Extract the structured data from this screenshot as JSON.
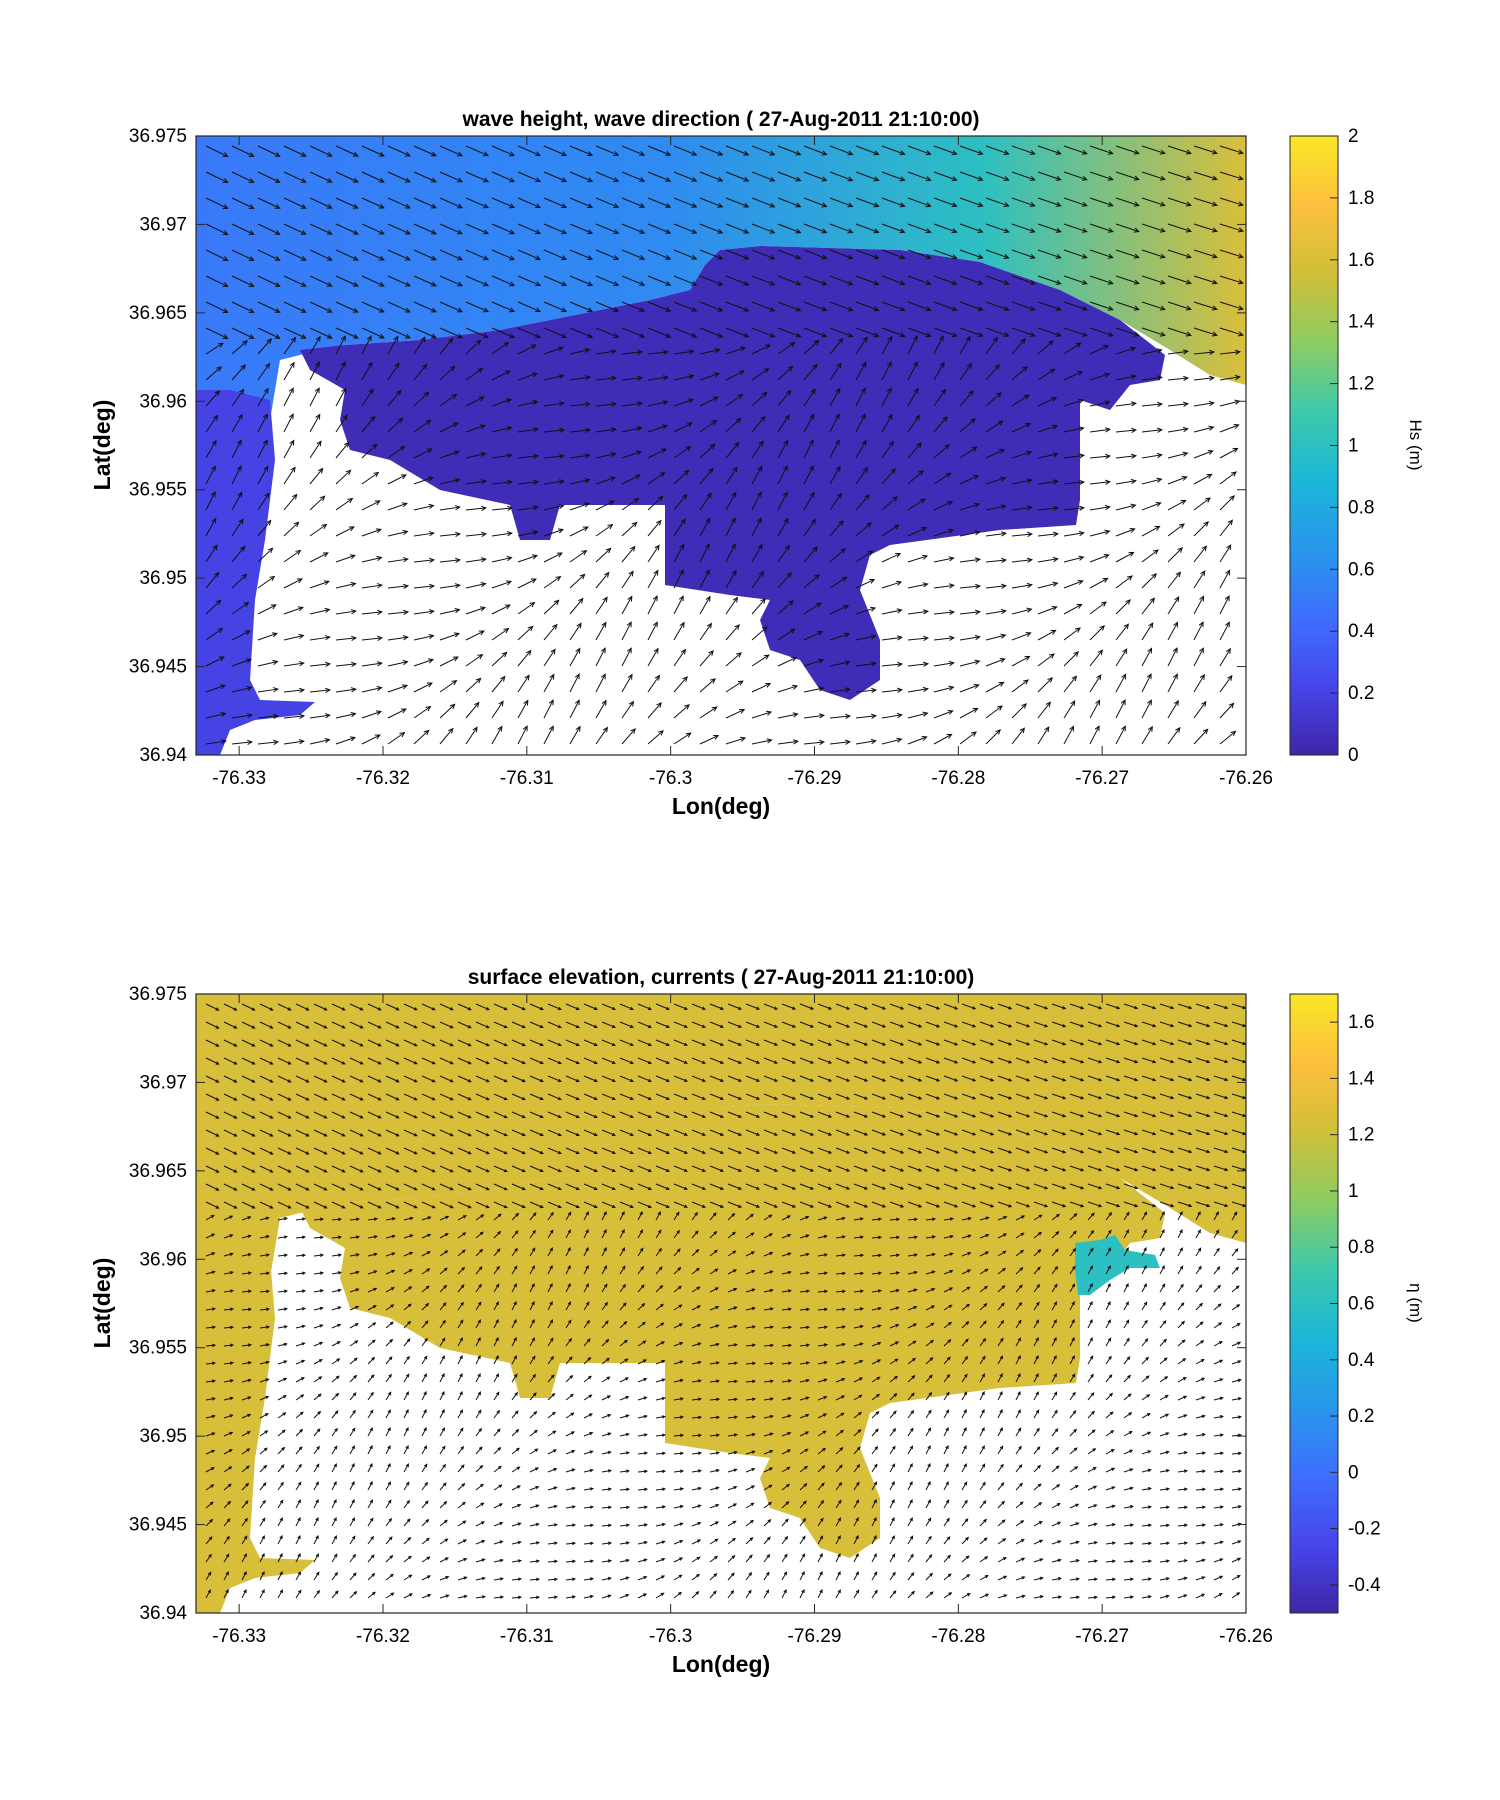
{
  "chart_data": [
    {
      "type": "heatmap",
      "title": "wave height, wave direction ( 27-Aug-2011 21:10:00)",
      "xlabel": "Lon(deg)",
      "ylabel": "Lat(deg)",
      "xlim": [
        -76.333,
        -76.26
      ],
      "ylim": [
        36.94,
        36.975
      ],
      "xticks": [
        -76.33,
        -76.32,
        -76.31,
        -76.3,
        -76.29,
        -76.28,
        -76.27,
        -76.26
      ],
      "xtick_labels": [
        "-76.33",
        "-76.32",
        "-76.31",
        "-76.3",
        "-76.29",
        "-76.28",
        "-76.27",
        "-76.26"
      ],
      "yticks": [
        36.94,
        36.945,
        36.95,
        36.955,
        36.96,
        36.965,
        36.97,
        36.975
      ],
      "ytick_labels": [
        "36.94",
        "36.945",
        "36.95",
        "36.955",
        "36.96",
        "36.965",
        "36.97",
        "36.975"
      ],
      "colorbar": {
        "label": "Hs (m)",
        "range": [
          0,
          2
        ],
        "ticks": [
          0,
          0.2,
          0.4,
          0.6,
          0.8,
          1,
          1.2,
          1.4,
          1.6,
          1.8,
          2
        ],
        "tick_labels": [
          "0",
          "0.2",
          "0.4",
          "0.6",
          "0.8",
          "1",
          "1.2",
          "1.4",
          "1.6",
          "1.8",
          "2"
        ]
      },
      "colormap": [
        "#3e26a8",
        "#4746eb",
        "#3e6ffe",
        "#2897eb",
        "#1bb7d8",
        "#3ec9ab",
        "#8dcc61",
        "#d1bf39",
        "#fcc03d",
        "#f9e726"
      ],
      "overlay": "quiver (wave direction)",
      "field": {
        "offshore_west": 0.5,
        "offshore_east": 1.6,
        "sheltered_harbor": 0.05,
        "west_channel": 0.2
      }
    },
    {
      "type": "heatmap",
      "title": "surface elevation, currents ( 27-Aug-2011 21:10:00)",
      "xlabel": "Lon(deg)",
      "ylabel": "Lat(deg)",
      "xlim": [
        -76.333,
        -76.26
      ],
      "ylim": [
        36.94,
        36.975
      ],
      "xticks": [
        -76.33,
        -76.32,
        -76.31,
        -76.3,
        -76.29,
        -76.28,
        -76.27,
        -76.26
      ],
      "xtick_labels": [
        "-76.33",
        "-76.32",
        "-76.31",
        "-76.3",
        "-76.29",
        "-76.28",
        "-76.27",
        "-76.26"
      ],
      "yticks": [
        36.94,
        36.945,
        36.95,
        36.955,
        36.96,
        36.965,
        36.97,
        36.975
      ],
      "ytick_labels": [
        "36.94",
        "36.945",
        "36.95",
        "36.955",
        "36.96",
        "36.965",
        "36.97",
        "36.975"
      ],
      "colorbar": {
        "label": "η (m)",
        "range": [
          -0.5,
          1.7
        ],
        "ticks": [
          -0.4,
          -0.2,
          0,
          0.2,
          0.4,
          0.6,
          0.8,
          1,
          1.2,
          1.4,
          1.6
        ],
        "tick_labels": [
          "-0.4",
          "-0.2",
          "0",
          "0.2",
          "0.4",
          "0.6",
          "0.8",
          "1",
          "1.2",
          "1.4",
          "1.6"
        ]
      },
      "colormap": [
        "#3e26a8",
        "#4746eb",
        "#3e6ffe",
        "#2897eb",
        "#1bb7d8",
        "#3ec9ab",
        "#8dcc61",
        "#d1bf39",
        "#fcc03d",
        "#f9e726"
      ],
      "overlay": "quiver (currents)",
      "field": {
        "water": 1.25,
        "east_pond": 0.6
      }
    }
  ]
}
